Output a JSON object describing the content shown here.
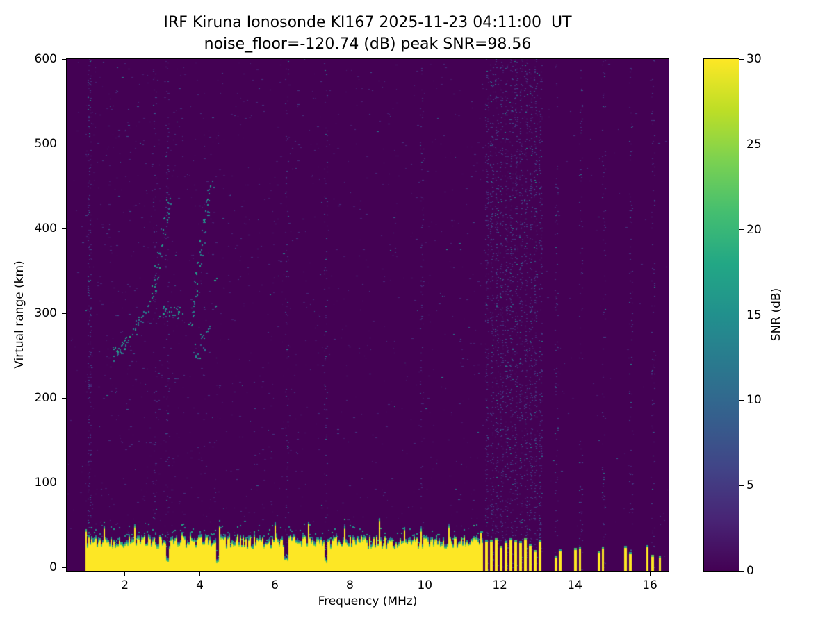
{
  "chart_data": {
    "type": "heatmap",
    "title": "IRF Kiruna Ionosonde KI167 2025-11-23 04:11:00  UT",
    "subtitle": "noise_floor=-120.74 (dB) peak SNR=98.56",
    "xlabel": "Frequency (MHz)",
    "ylabel": "Virtual range (km)",
    "xlim": [
      0.45,
      16.5
    ],
    "ylim": [
      -4,
      600
    ],
    "xticks": [
      2,
      4,
      6,
      8,
      10,
      12,
      14,
      16
    ],
    "yticks": [
      0,
      100,
      200,
      300,
      400,
      500,
      600
    ],
    "grid": false,
    "colorbar": {
      "label": "SNR (dB)",
      "min": 0,
      "max": 30,
      "ticks": [
        0,
        5,
        10,
        15,
        20,
        25,
        30
      ],
      "colormap": "viridis"
    },
    "background_snr_db": 0,
    "ground_clutter": {
      "description": "saturated ground-echo band at bottom of ionogram, SNR ~30 dB",
      "freq_start_mhz": 0.95,
      "continuous_until_mhz": 11.55,
      "top_range_km_mean": 30,
      "top_range_km_jitter": 14,
      "snr_db": 30,
      "notch_freqs_mhz": [
        3.12,
        4.45,
        6.3,
        7.35
      ],
      "intermittent_bars_mhz": [
        11.64,
        11.77,
        11.9,
        12.03,
        12.16,
        12.29,
        12.42,
        12.55,
        12.68,
        12.81,
        12.94,
        13.07,
        13.5,
        13.61,
        14.02,
        14.15,
        14.65,
        14.76,
        15.35,
        15.48,
        15.94,
        16.07,
        16.27
      ]
    },
    "interference_stripes_mhz": [
      1.05,
      2.78,
      3.12,
      6.3,
      7.35,
      9.9,
      11.64,
      11.77,
      11.9,
      12.03,
      12.16,
      12.29,
      12.42,
      12.55,
      12.68,
      12.81,
      12.94,
      13.07,
      13.5,
      14.15,
      14.76,
      15.48,
      16.07
    ],
    "echo_trace_km": {
      "description": "ionospheric echo trace, SNR ~8-18 dB",
      "main": [
        [
          1.72,
          248
        ],
        [
          1.76,
          254
        ],
        [
          1.8,
          259
        ],
        [
          1.84,
          251
        ],
        [
          1.88,
          263
        ],
        [
          1.92,
          257
        ],
        [
          1.97,
          266
        ],
        [
          2.02,
          262
        ],
        [
          2.07,
          270
        ],
        [
          2.12,
          267
        ],
        [
          2.18,
          274
        ],
        [
          2.24,
          279
        ],
        [
          2.3,
          284
        ],
        [
          2.36,
          288
        ],
        [
          2.42,
          293
        ],
        [
          2.48,
          297
        ],
        [
          2.54,
          301
        ],
        [
          2.6,
          306
        ],
        [
          2.66,
          313
        ],
        [
          2.71,
          321
        ],
        [
          2.76,
          331
        ],
        [
          2.81,
          343
        ],
        [
          2.86,
          356
        ],
        [
          2.91,
          369
        ],
        [
          2.96,
          382
        ],
        [
          3.01,
          396
        ],
        [
          3.06,
          410
        ],
        [
          3.11,
          422
        ],
        [
          3.16,
          433
        ],
        [
          2.98,
          300
        ],
        [
          3.04,
          306
        ],
        [
          3.1,
          298
        ],
        [
          3.16,
          304
        ],
        [
          3.22,
          299
        ],
        [
          3.28,
          305
        ],
        [
          3.34,
          296
        ],
        [
          3.4,
          303
        ],
        [
          3.46,
          299
        ]
      ],
      "second": [
        [
          3.74,
          289
        ],
        [
          3.78,
          300
        ],
        [
          3.82,
          312
        ],
        [
          3.86,
          324
        ],
        [
          3.9,
          336
        ],
        [
          3.94,
          348
        ],
        [
          3.98,
          360
        ],
        [
          4.02,
          372
        ],
        [
          4.06,
          384
        ],
        [
          4.1,
          396
        ],
        [
          4.14,
          408
        ],
        [
          4.18,
          420
        ],
        [
          4.22,
          432
        ],
        [
          4.26,
          444
        ],
        [
          4.3,
          453
        ],
        [
          3.88,
          252
        ],
        [
          3.94,
          263
        ],
        [
          4.0,
          244
        ],
        [
          4.06,
          274
        ],
        [
          4.12,
          257
        ],
        [
          4.2,
          282
        ],
        [
          4.34,
          310
        ],
        [
          4.4,
          340
        ]
      ]
    },
    "noise_speckle_snr_db": [
      1,
      10
    ]
  }
}
